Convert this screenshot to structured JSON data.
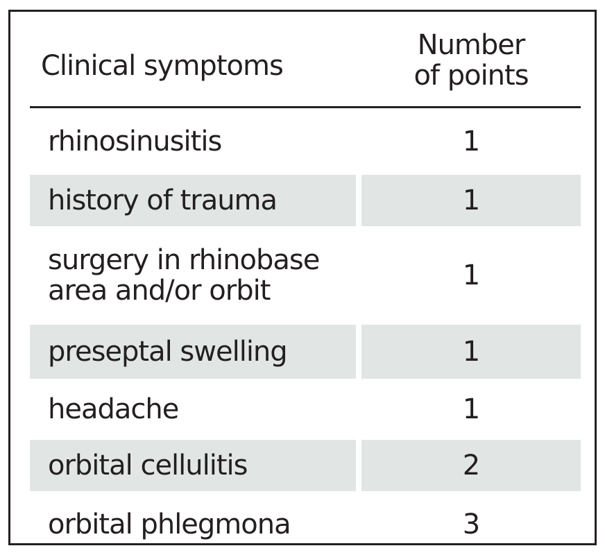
{
  "table": {
    "header": {
      "symptoms_label": "Clinical symptoms",
      "points_label_line1": "Number",
      "points_label_line2": "of points"
    },
    "rows": [
      {
        "symptom_lines": [
          "rhinosinusitis"
        ],
        "points": "1",
        "shaded": false
      },
      {
        "symptom_lines": [
          "history of trauma"
        ],
        "points": "1",
        "shaded": true
      },
      {
        "symptom_lines": [
          "surgery in rhinobase",
          "area and/or orbit"
        ],
        "points": "1",
        "shaded": false
      },
      {
        "symptom_lines": [
          "preseptal swelling"
        ],
        "points": "1",
        "shaded": true
      },
      {
        "symptom_lines": [
          "headache"
        ],
        "points": "1",
        "shaded": false
      },
      {
        "symptom_lines": [
          "orbital cellulitis"
        ],
        "points": "2",
        "shaded": true
      },
      {
        "symptom_lines": [
          "orbital phlegmona"
        ],
        "points": "3",
        "shaded": false
      }
    ],
    "colors": {
      "text": "#231f20",
      "border": "#231f20",
      "shade": "#e1e6e5"
    }
  }
}
